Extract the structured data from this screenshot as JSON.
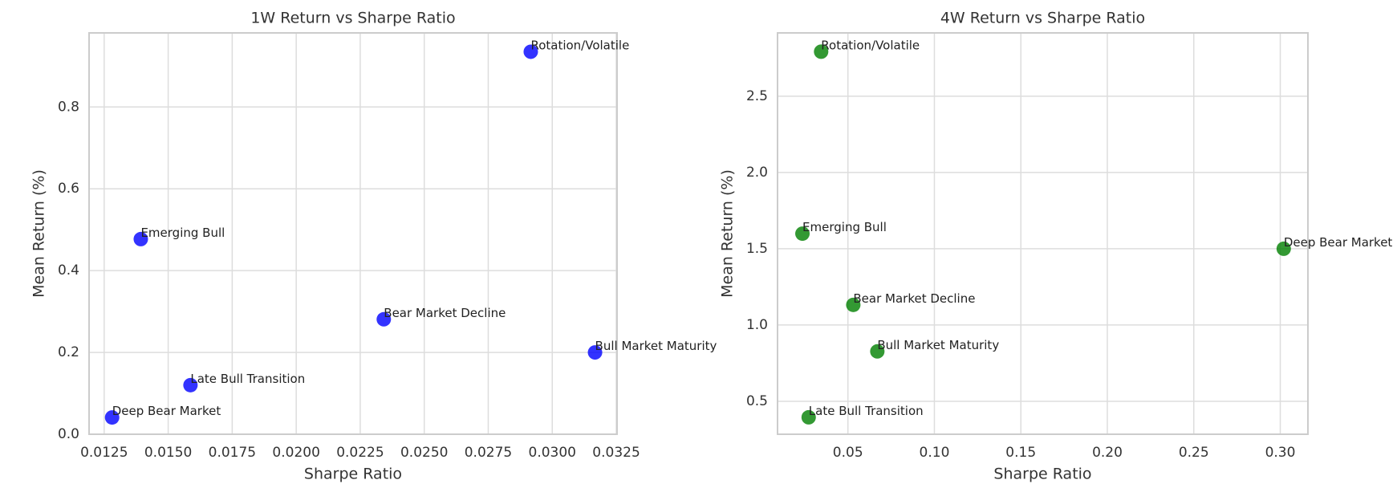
{
  "chart_data": [
    {
      "type": "scatter",
      "title": "1W Return vs Sharpe Ratio",
      "xlabel": "Sharpe Ratio",
      "ylabel": "Mean Return (%)",
      "x": [
        0.02916,
        0.01393,
        0.02342,
        0.03167,
        0.01587,
        0.01281
      ],
      "y": [
        0.935,
        0.477,
        0.281,
        0.2,
        0.12,
        0.041
      ],
      "labels": [
        "Rotation/Volatile",
        "Emerging Bull",
        "Bear Market Decline",
        "Bull Market Maturity",
        "Late Bull Transition",
        "Deep Bear Market"
      ],
      "color": "#0000ff",
      "xlim": [
        0.01191,
        0.03253
      ],
      "ylim": [
        0,
        0.981
      ],
      "xticks": [
        0.0125,
        {
          "value": 0.015,
          "label": "0.0150"
        },
        0.0175,
        {
          "value": 0.02,
          "label": "0.0200"
        },
        0.0225,
        {
          "value": 0.025,
          "label": "0.0250"
        },
        0.0275,
        {
          "value": 0.03,
          "label": "0.0300"
        },
        0.0325
      ],
      "yticks": [
        {
          "value": 0,
          "label": "0.0"
        },
        0.2,
        0.4,
        0.6,
        0.8
      ],
      "grid": true
    },
    {
      "type": "scatter",
      "title": "4W Return vs Sharpe Ratio",
      "xlabel": "Sharpe Ratio",
      "ylabel": "Mean Return (%)",
      "x": [
        0.0345,
        0.0237,
        0.302,
        0.0531,
        0.067,
        0.0273
      ],
      "y": [
        2.792,
        1.599,
        1.5,
        1.132,
        0.827,
        0.395
      ],
      "labels": [
        "Rotation/Volatile",
        "Emerging Bull",
        "Deep Bear Market",
        "Bear Market Decline",
        "Bull Market Maturity",
        "Late Bull Transition"
      ],
      "color": "#008000",
      "xlim": [
        0.0093,
        0.316
      ],
      "ylim": [
        0.284,
        2.915
      ],
      "xticks": [
        0.05,
        {
          "value": 0.1,
          "label": "0.10"
        },
        0.15,
        {
          "value": 0.2,
          "label": "0.20"
        },
        0.25,
        {
          "value": 0.3,
          "label": "0.30"
        }
      ],
      "yticks": [
        0.5,
        {
          "value": 1,
          "label": "1.0"
        },
        1.5,
        {
          "value": 2,
          "label": "2.0"
        },
        2.5
      ],
      "grid": true
    }
  ]
}
